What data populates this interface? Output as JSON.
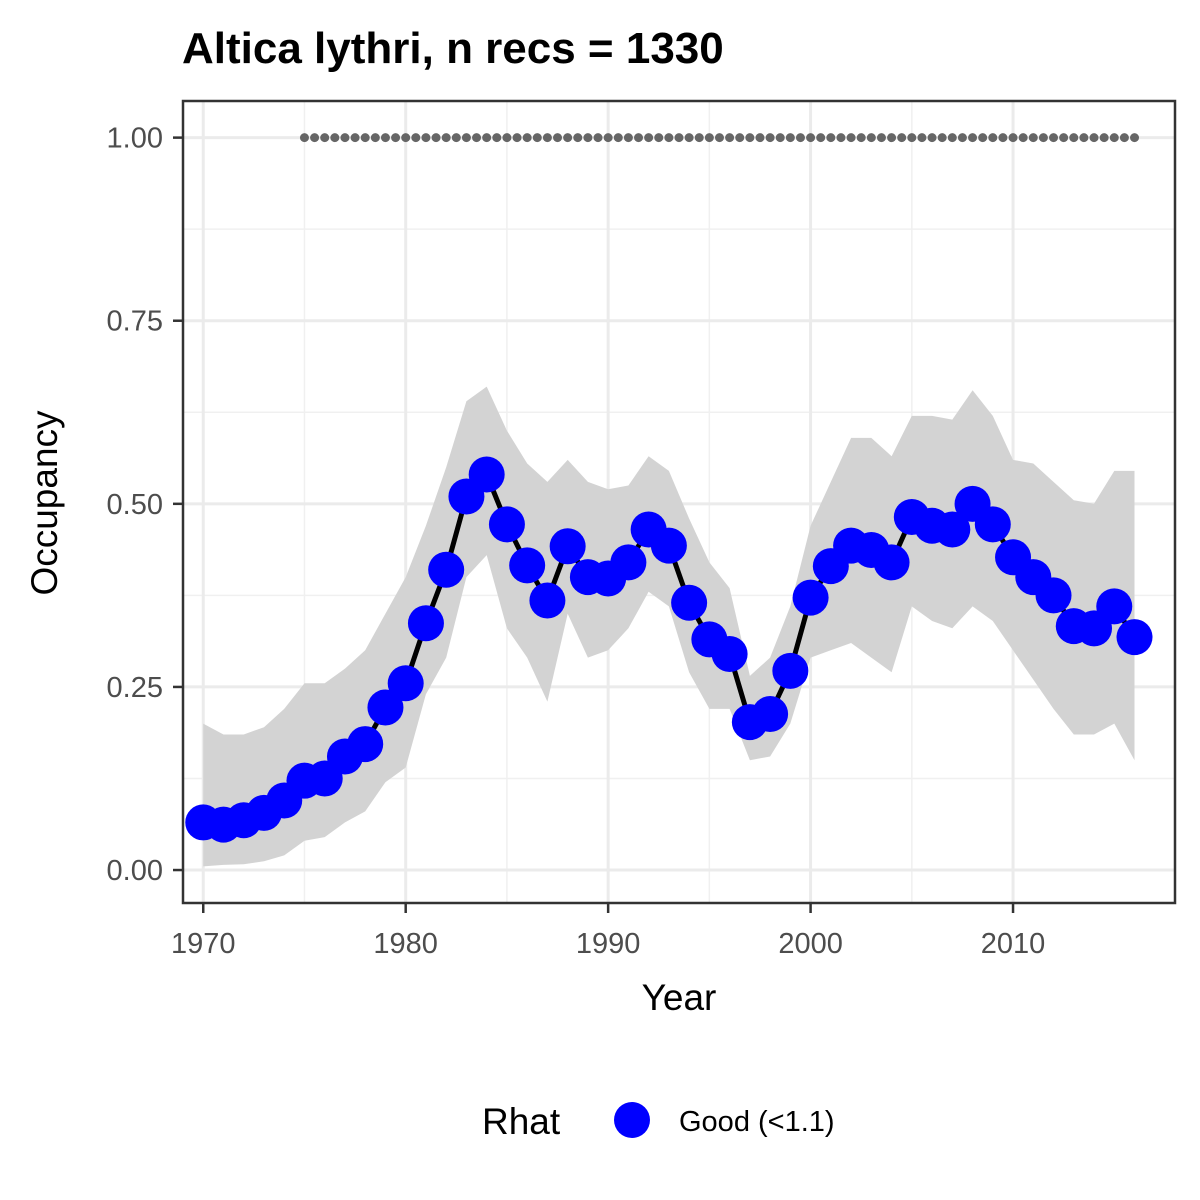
{
  "chart_data": {
    "type": "line",
    "title": "Altica lythri, n recs = 1330",
    "xlabel": "Year",
    "ylabel": "Occupancy",
    "xlim": [
      1969,
      2018
    ],
    "ylim": [
      -0.045,
      1.05
    ],
    "x_ticks": [
      1970,
      1980,
      1990,
      2000,
      2010
    ],
    "x_tick_labels": [
      "1970",
      "1980",
      "1990",
      "2000",
      "2010"
    ],
    "y_ticks": [
      0,
      0.25,
      0.5,
      0.75,
      1.0
    ],
    "y_tick_labels": [
      "0.00",
      "0.25",
      "0.50",
      "0.75",
      "1.00"
    ],
    "grid": true,
    "legend": {
      "position": "bottom",
      "title": "Rhat",
      "entries": [
        {
          "label": "Good (<1.1)",
          "color": "#0000ff"
        }
      ]
    },
    "series": [
      {
        "name": "Good (<1.1)",
        "x": [
          1970,
          1971,
          1972,
          1973,
          1974,
          1975,
          1976,
          1977,
          1978,
          1979,
          1980,
          1981,
          1982,
          1983,
          1984,
          1985,
          1986,
          1987,
          1988,
          1989,
          1990,
          1991,
          1992,
          1993,
          1994,
          1995,
          1996,
          1997,
          1998,
          1999,
          2000,
          2001,
          2002,
          2003,
          2004,
          2005,
          2006,
          2007,
          2008,
          2009,
          2010,
          2011,
          2012,
          2013,
          2014,
          2015,
          2016
        ],
        "y": [
          0.065,
          0.062,
          0.068,
          0.078,
          0.095,
          0.122,
          0.125,
          0.155,
          0.172,
          0.222,
          0.255,
          0.337,
          0.41,
          0.51,
          0.54,
          0.472,
          0.416,
          0.368,
          0.442,
          0.4,
          0.398,
          0.42,
          0.465,
          0.443,
          0.365,
          0.315,
          0.295,
          0.202,
          0.213,
          0.272,
          0.372,
          0.415,
          0.443,
          0.437,
          0.42,
          0.482,
          0.47,
          0.465,
          0.5,
          0.472,
          0.427,
          0.4,
          0.375,
          0.333,
          0.33,
          0.36,
          0.318
        ],
        "lower": [
          0.005,
          0.007,
          0.008,
          0.012,
          0.02,
          0.04,
          0.045,
          0.065,
          0.08,
          0.12,
          0.14,
          0.24,
          0.29,
          0.4,
          0.43,
          0.33,
          0.29,
          0.23,
          0.35,
          0.29,
          0.3,
          0.33,
          0.38,
          0.36,
          0.27,
          0.22,
          0.22,
          0.15,
          0.155,
          0.2,
          0.29,
          0.3,
          0.31,
          0.29,
          0.27,
          0.36,
          0.34,
          0.33,
          0.36,
          0.34,
          0.3,
          0.26,
          0.22,
          0.185,
          0.185,
          0.2,
          0.15
        ],
        "upper": [
          0.2,
          0.185,
          0.185,
          0.195,
          0.22,
          0.255,
          0.255,
          0.275,
          0.3,
          0.35,
          0.4,
          0.47,
          0.55,
          0.64,
          0.66,
          0.6,
          0.555,
          0.53,
          0.56,
          0.53,
          0.52,
          0.525,
          0.565,
          0.545,
          0.48,
          0.42,
          0.385,
          0.265,
          0.29,
          0.36,
          0.47,
          0.53,
          0.59,
          0.59,
          0.565,
          0.62,
          0.62,
          0.615,
          0.655,
          0.62,
          0.56,
          0.555,
          0.53,
          0.505,
          0.5,
          0.545,
          0.545
        ],
        "color": "#0000ff",
        "line_color": "#000000",
        "ribbon_color": "#d3d3d3"
      }
    ],
    "reference_dots": {
      "y": 1.0,
      "x": [
        1975,
        1975.5,
        1976,
        1976.5,
        1977,
        1977.5,
        1978,
        1978.5,
        1979,
        1979.5,
        1980,
        1980.5,
        1981,
        1981.5,
        1982,
        1982.5,
        1983,
        1983.5,
        1984,
        1984.5,
        1985,
        1985.5,
        1986,
        1986.5,
        1987,
        1987.5,
        1988,
        1988.5,
        1989,
        1989.5,
        1990,
        1990.5,
        1991,
        1991.5,
        1992,
        1992.5,
        1993,
        1993.5,
        1994,
        1994.5,
        1995,
        1995.5,
        1996,
        1996.5,
        1997,
        1997.5,
        1998,
        1998.5,
        1999,
        1999.5,
        2000,
        2000.5,
        2001,
        2001.5,
        2002,
        2002.5,
        2003,
        2003.5,
        2004,
        2004.5,
        2005,
        2005.5,
        2006,
        2006.5,
        2007,
        2007.5,
        2008,
        2008.5,
        2009,
        2009.5,
        2010,
        2010.5,
        2011,
        2011.5,
        2012,
        2012.5,
        2013,
        2013.5,
        2014,
        2014.5,
        2015,
        2015.5,
        2016
      ],
      "color": "#666666"
    }
  }
}
